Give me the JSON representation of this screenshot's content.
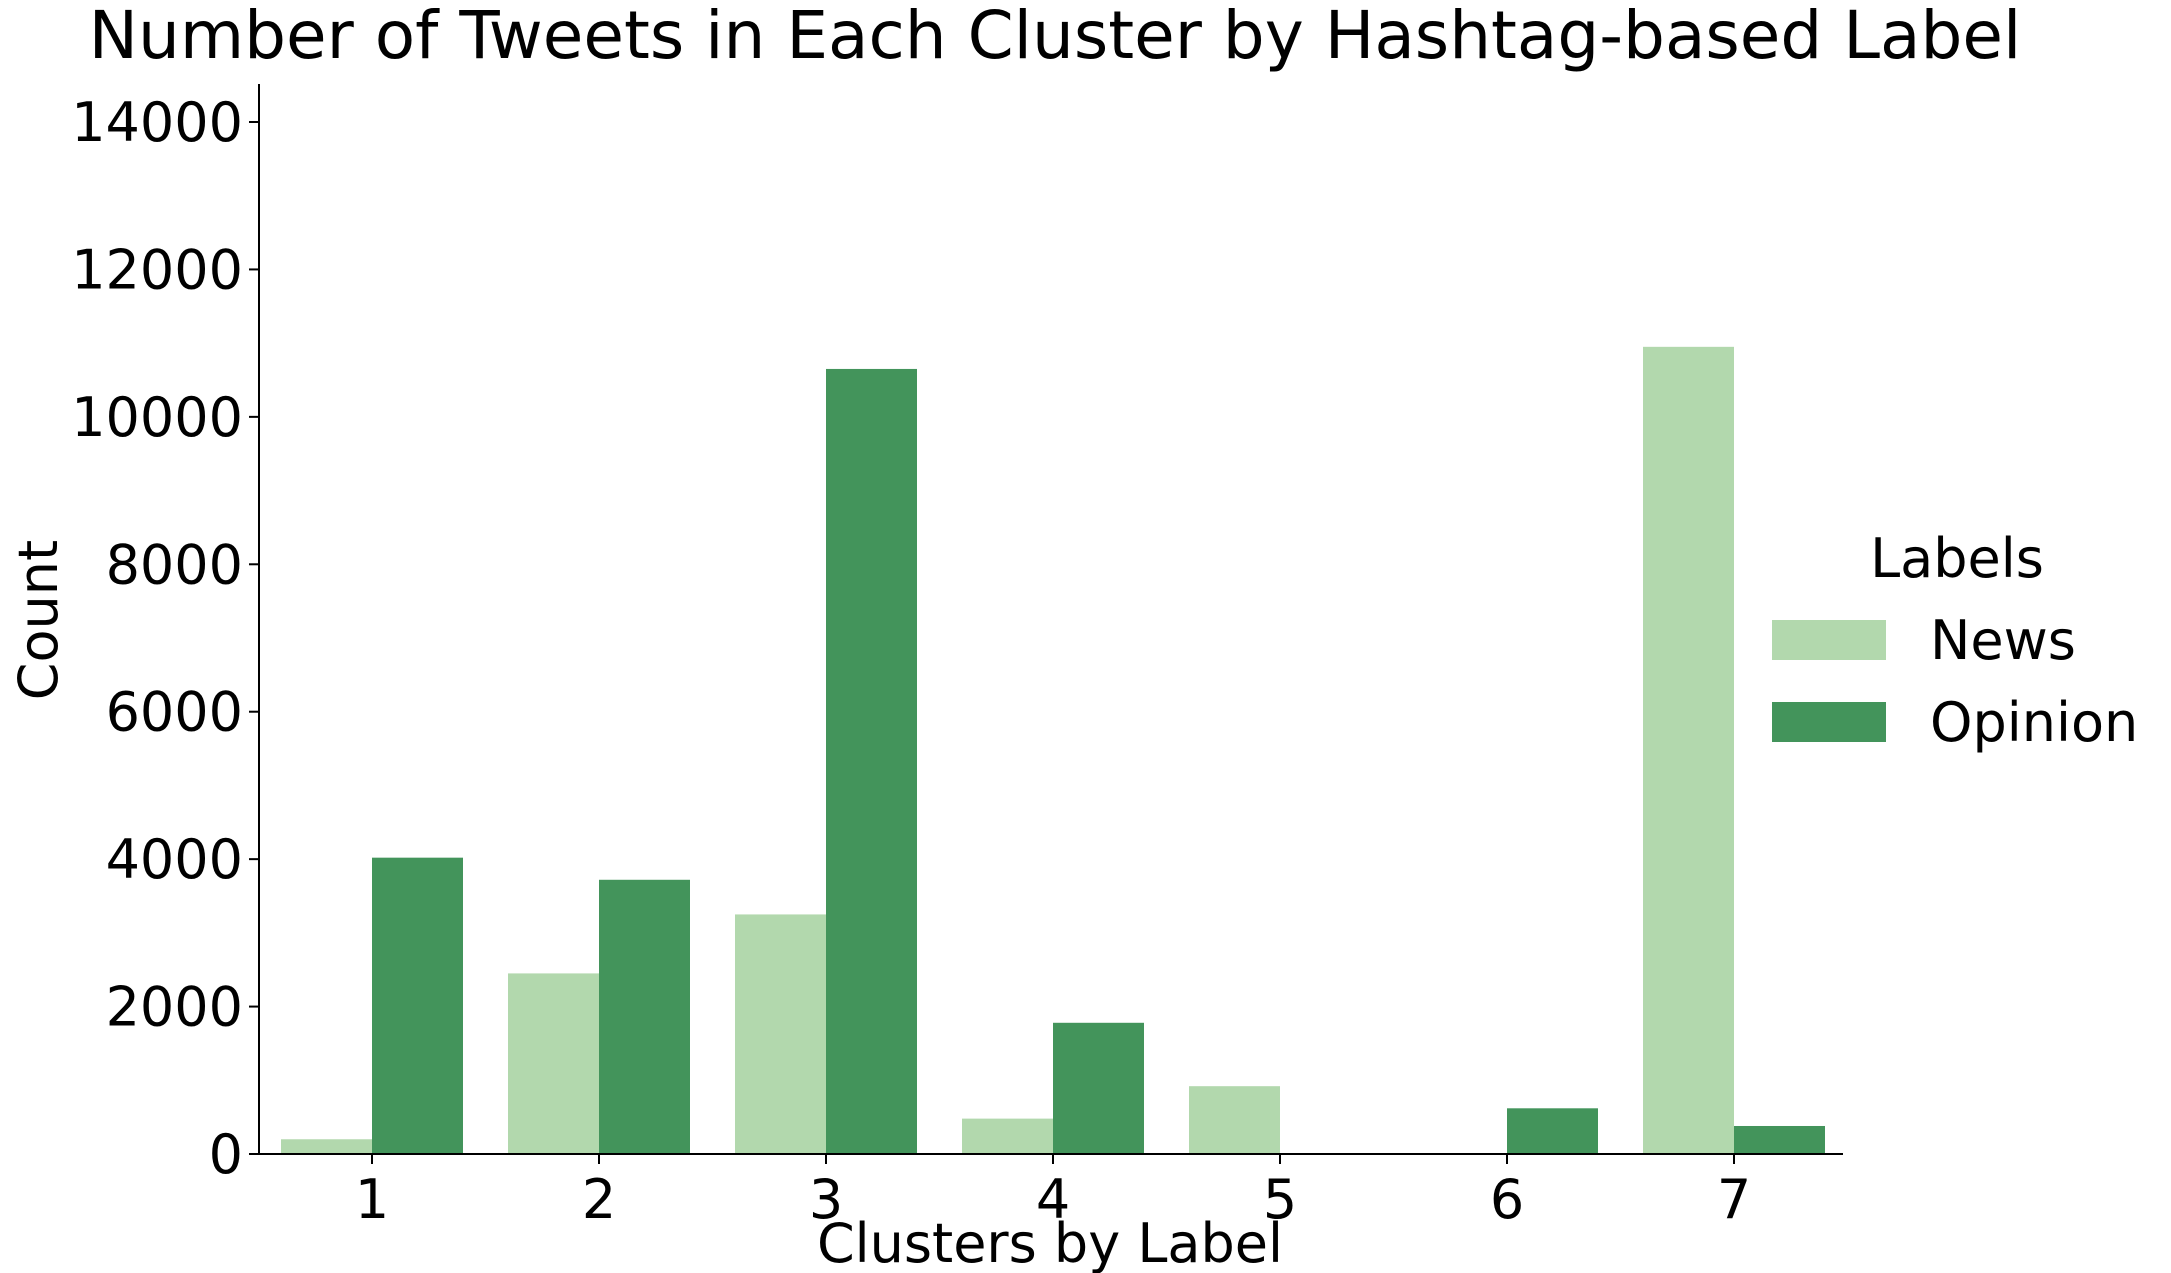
{
  "chart_data": {
    "type": "bar",
    "title": "Number of Tweets in Each Cluster by Hashtag-based Label",
    "xlabel": "Clusters by Label",
    "ylabel": "Count",
    "categories": [
      "1",
      "2",
      "3",
      "4",
      "5",
      "6",
      "7"
    ],
    "series": [
      {
        "name": "News",
        "color": "#b2d8ad",
        "values": [
          200,
          2450,
          3250,
          480,
          920,
          0,
          10950
        ]
      },
      {
        "name": "Opinion",
        "color": "#43945b",
        "values": [
          4020,
          3720,
          10650,
          1780,
          0,
          620,
          380
        ]
      }
    ],
    "ylim": [
      0,
      14500
    ],
    "yticks": [
      "0",
      "2000",
      "4000",
      "6000",
      "8000",
      "10000",
      "12000",
      "14000"
    ],
    "grid": false,
    "legend": {
      "title": "Labels",
      "placement": "right"
    }
  }
}
